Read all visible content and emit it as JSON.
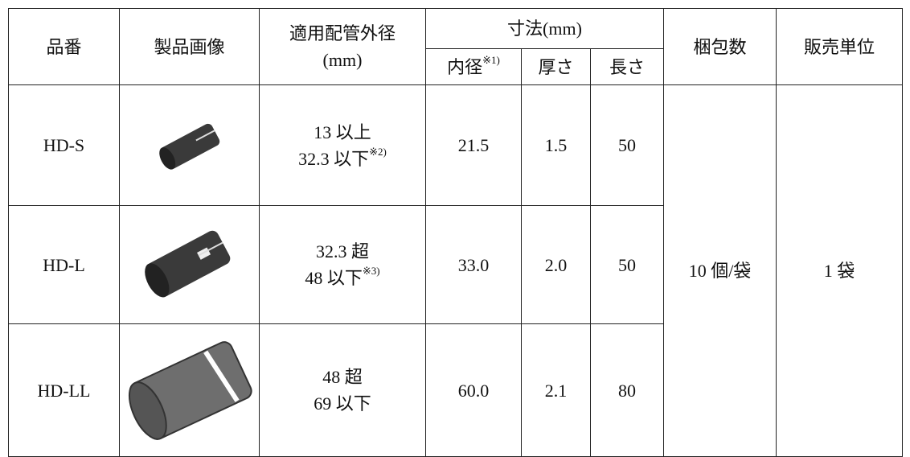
{
  "table": {
    "header": {
      "part_no": "品番",
      "image": "製品画像",
      "pipe_od": "適用配管外径",
      "pipe_od_unit": "(mm)",
      "dimensions": "寸法(mm)",
      "inner": "内径",
      "inner_note": "※1)",
      "thickness": "厚さ",
      "length": "長さ",
      "pack": "梱包数",
      "sales_unit": "販売単位"
    },
    "rows": [
      {
        "part_no": "HD-S",
        "od_min": "13 以上",
        "od_max": "32.3 以下",
        "od_max_note": "※2)",
        "inner": "21.5",
        "thickness": "1.5",
        "length": "50"
      },
      {
        "part_no": "HD-L",
        "od_min": "32.3 超",
        "od_max": "48 以下",
        "od_max_note": "※3)",
        "inner": "33.0",
        "thickness": "2.0",
        "length": "50"
      },
      {
        "part_no": "HD-LL",
        "od_min": "48 超",
        "od_max": "69 以下",
        "inner": "60.0",
        "thickness": "2.1",
        "length": "80"
      }
    ],
    "pack": "10 個/袋",
    "sales_unit": "1 袋"
  }
}
